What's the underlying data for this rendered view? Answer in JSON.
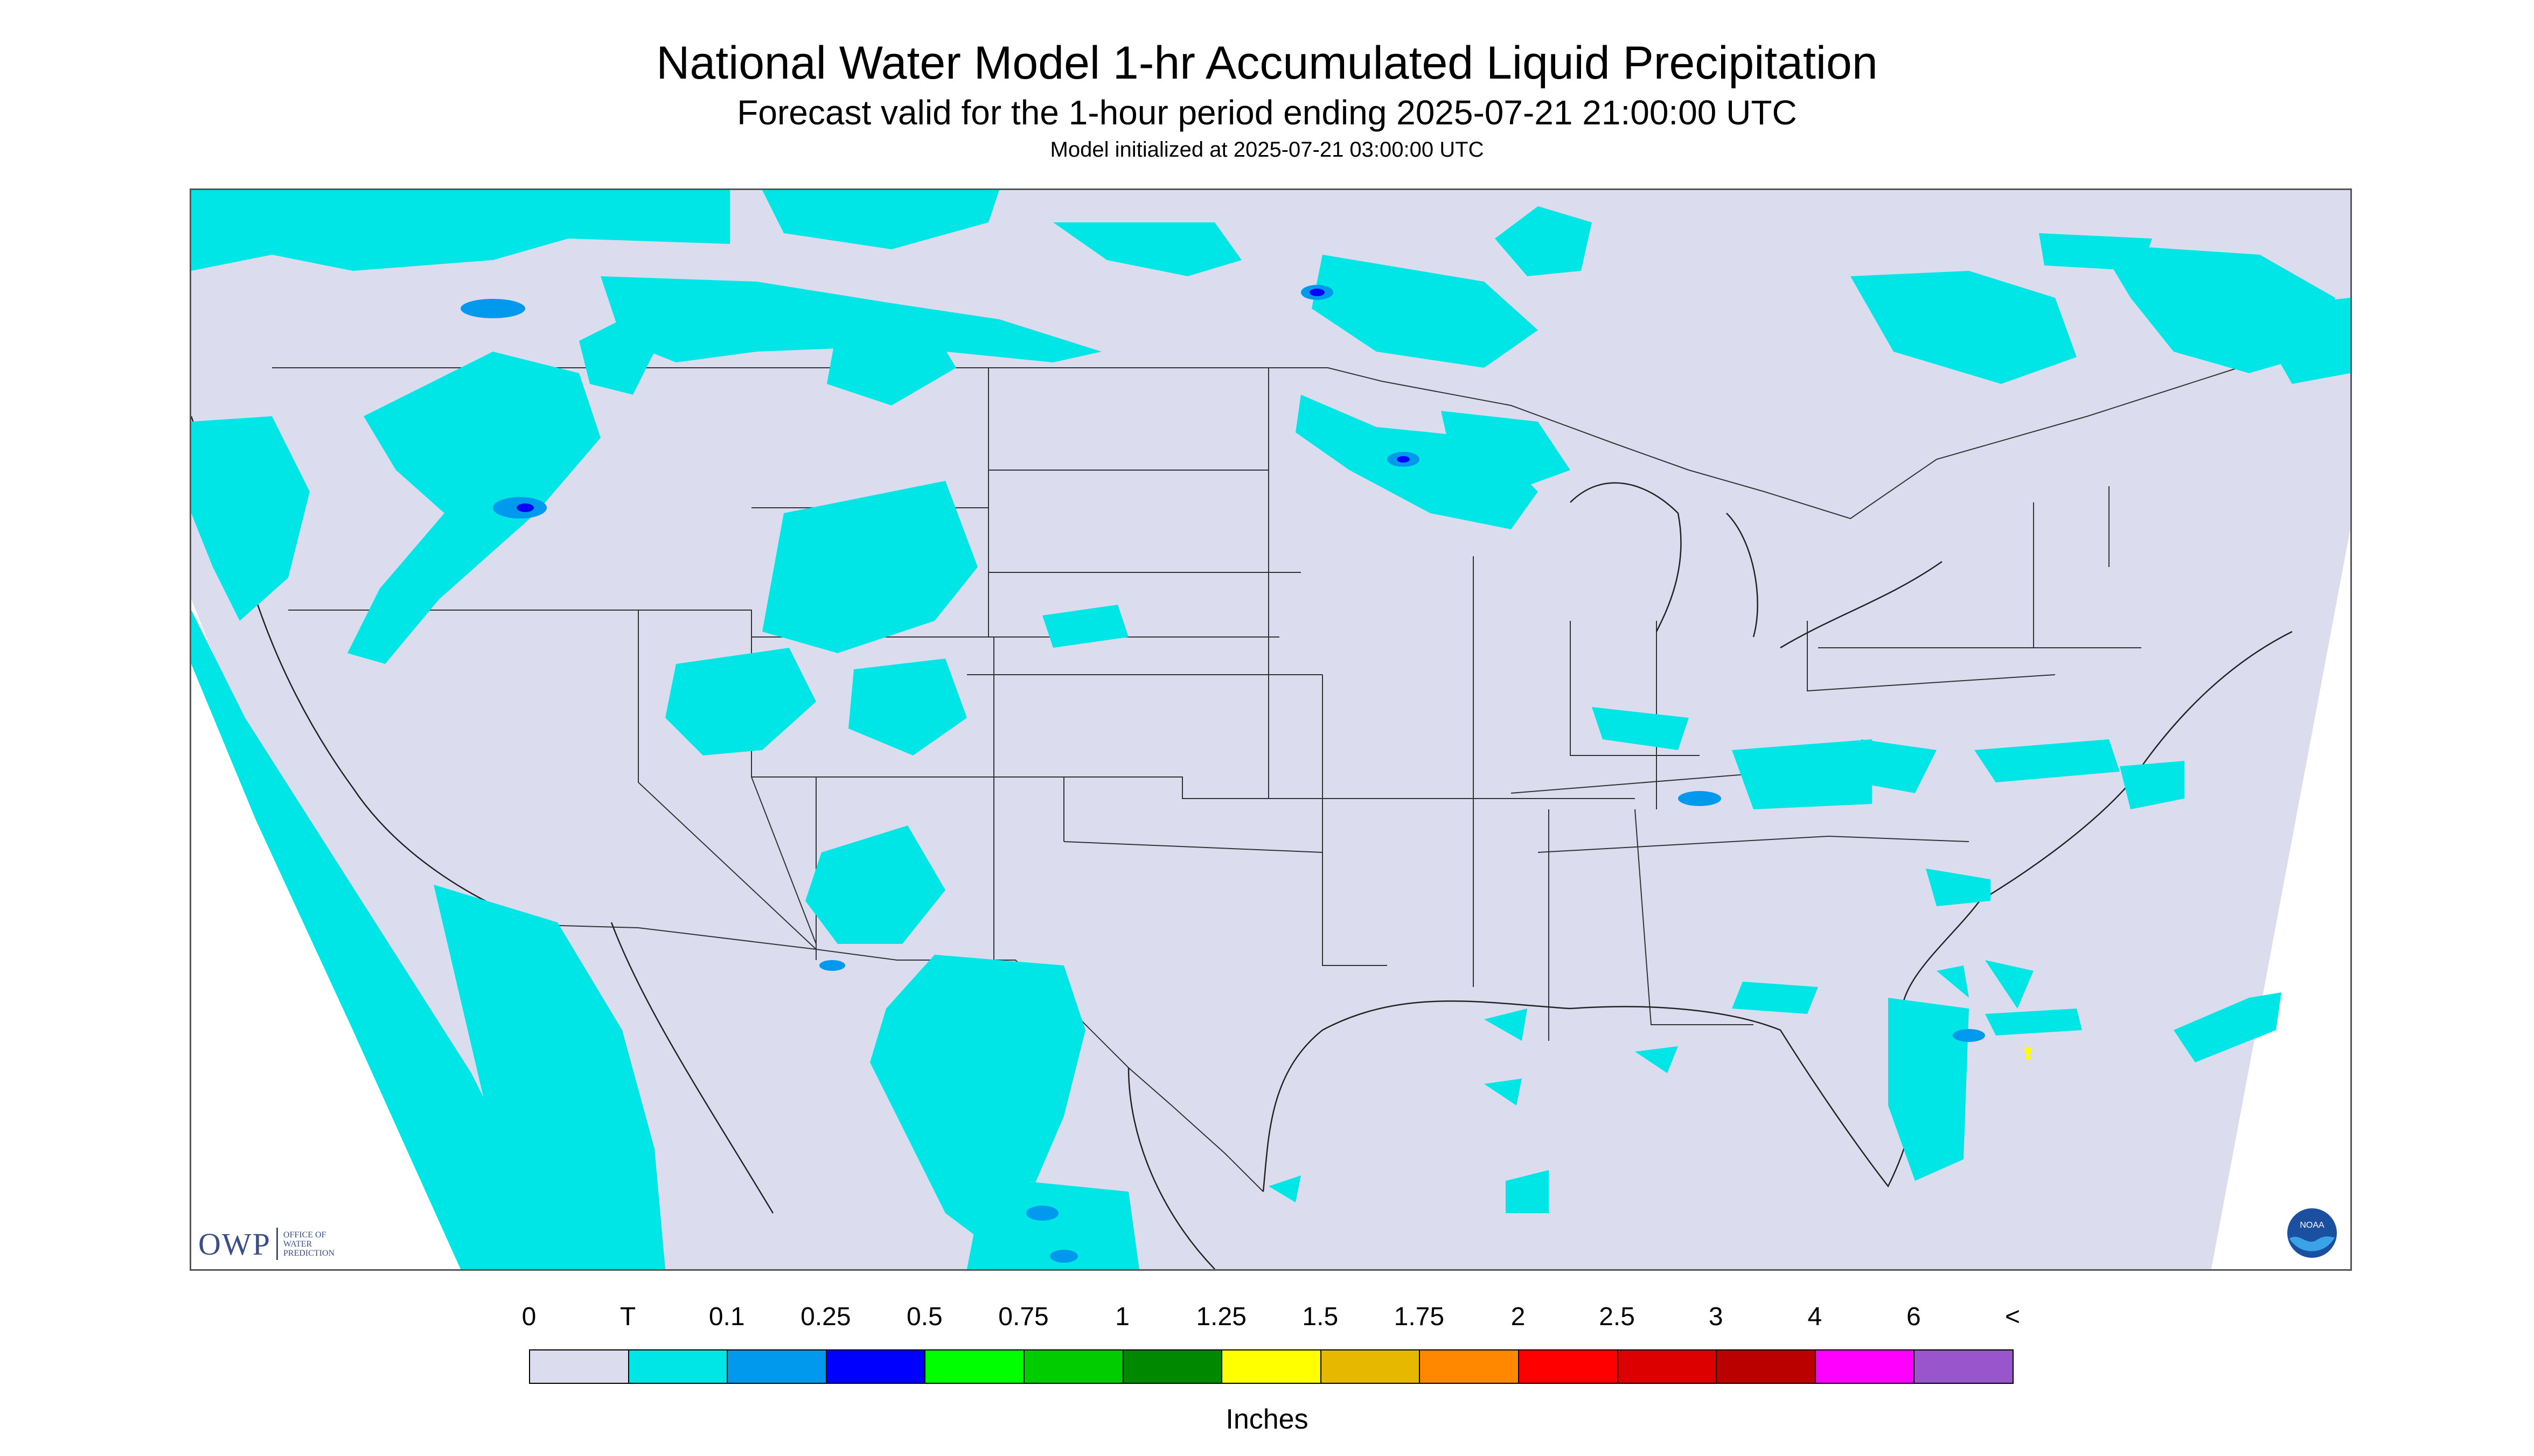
{
  "header": {
    "title": "National Water Model 1-hr Accumulated Liquid Precipitation",
    "subtitle": "Forecast valid for the 1-hour period ending 2025-07-21 21:00:00 UTC",
    "init": "Model initialized at 2025-07-21 03:00:00 UTC"
  },
  "map": {
    "background_color": "#dcdcef",
    "outside_domain_color": "#ffffff",
    "precip_trace_color": "#00e5e5",
    "precip_light_color": "#0099ee",
    "precip_mid_color": "#0000ff",
    "precip_heavy_color": "#ffff00"
  },
  "logos": {
    "owp_big": "OWP",
    "owp_small_1": "OFFICE OF",
    "owp_small_2": "WATER",
    "owp_small_3": "PREDICTION",
    "noaa_icon": "noaa-logo-icon",
    "noaa_text": "NOAA"
  },
  "legend": {
    "ticks": [
      "0",
      "T",
      "0.1",
      "0.25",
      "0.5",
      "0.75",
      "1",
      "1.25",
      "1.5",
      "1.75",
      "2",
      "2.5",
      "3",
      "4",
      "6",
      "<"
    ],
    "colors": [
      "#dcdcef",
      "#00e5e5",
      "#0099ee",
      "#0000ff",
      "#00ff00",
      "#00cc00",
      "#008800",
      "#ffff00",
      "#e6b800",
      "#ff8800",
      "#ff0000",
      "#dd0000",
      "#bb0000",
      "#ff00ff",
      "#9955cc"
    ],
    "units": "Inches"
  }
}
